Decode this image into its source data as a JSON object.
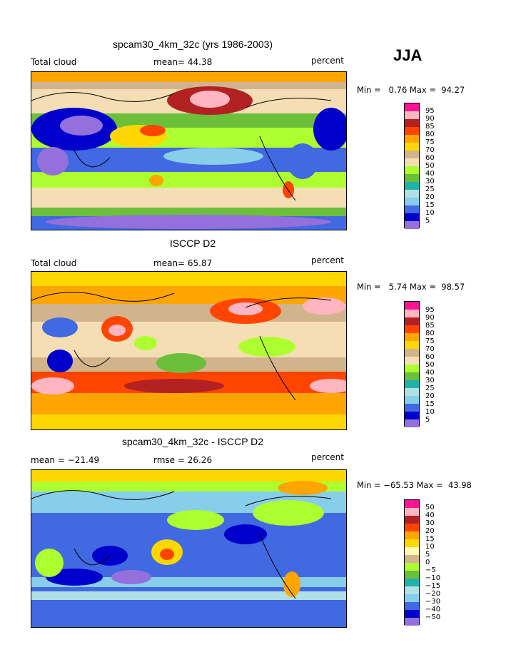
{
  "season": "JJA",
  "panels": [
    {
      "title": "spcam30_4km_32c (yrs 1986-2003)",
      "left_label": "Total cloud",
      "mid_label": "mean=  44.38",
      "right_label": "percent",
      "minmax": "Min =   0.76 Max =  94.27",
      "field": "model"
    },
    {
      "title": "ISCCP D2",
      "left_label": "Total cloud",
      "mid_label": "mean=  65.87",
      "right_label": "percent",
      "minmax": "Min =   5.74 Max =  98.57",
      "field": "obs"
    },
    {
      "title": "spcam30_4km_32c - ISCCP D2",
      "left_label": "mean = −21.49",
      "mid_label": "rmse =  26.26",
      "right_label": "percent",
      "minmax": "Min = −65.53 Max =  43.98",
      "field": "diff"
    }
  ],
  "colorbar_colors": [
    "#ff1493",
    "#ffb6c1",
    "#b22222",
    "#ff4500",
    "#ffa500",
    "#ffd700",
    "#fff8b0",
    "#d2b48c",
    "#f5deb3",
    "#adff2f",
    "#6bbf3a",
    "#20b2aa",
    "#b0e0e6",
    "#87ceeb",
    "#4169e1",
    "#0000cd",
    "#9370db"
  ],
  "colorbar_labels_abs": [
    "95",
    "90",
    "85",
    "80",
    "75",
    "70",
    "60",
    "50",
    "40",
    "30",
    "25",
    "20",
    "15",
    "10",
    "5"
  ],
  "colorbar_labels_diff": [
    "50",
    "40",
    "30",
    "20",
    "15",
    "10",
    "5",
    "0",
    "−5",
    "−10",
    "−15",
    "−20",
    "−30",
    "−40",
    "−50"
  ]
}
